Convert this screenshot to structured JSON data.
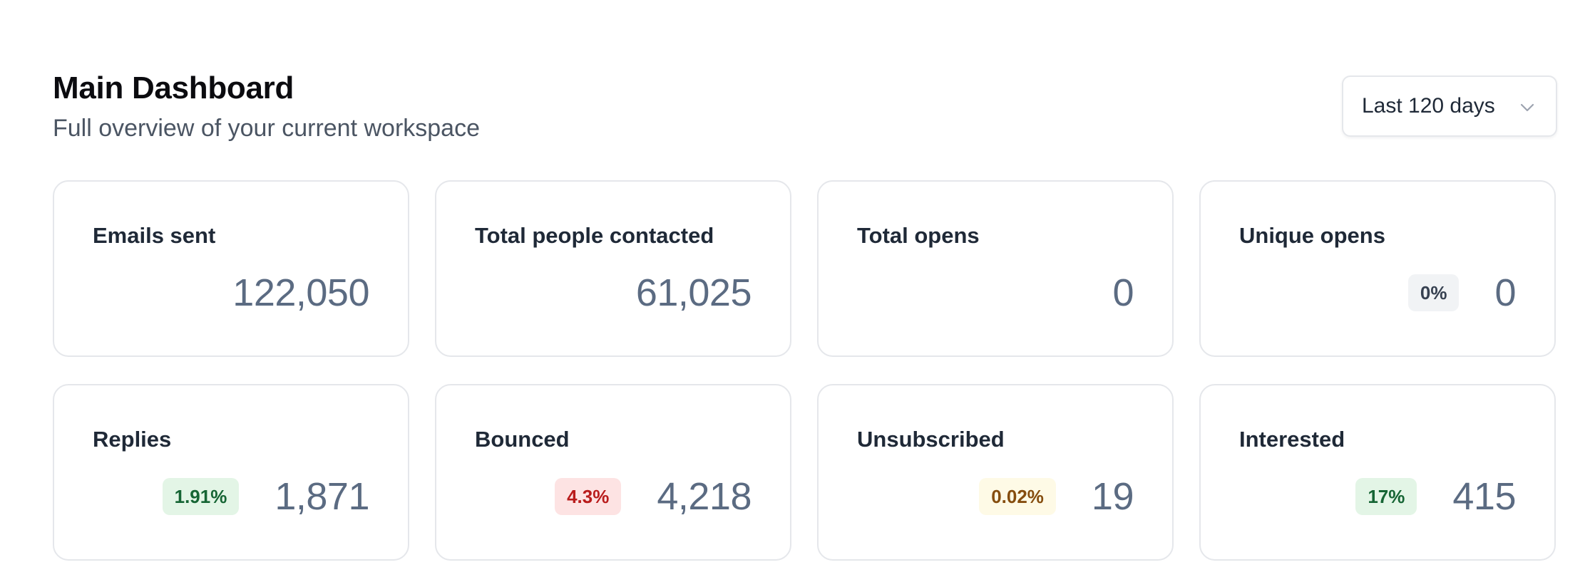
{
  "header": {
    "title": "Main Dashboard",
    "subtitle": "Full overview of your current workspace"
  },
  "date_range": {
    "selected": "Last 120 days",
    "icon": "chevron-down-icon"
  },
  "stats": {
    "emails_sent": {
      "label": "Emails sent",
      "value": "122,050"
    },
    "total_people_contacted": {
      "label": "Total people contacted",
      "value": "61,025"
    },
    "total_opens": {
      "label": "Total opens",
      "value": "0"
    },
    "unique_opens": {
      "label": "Unique opens",
      "value": "0",
      "badge": "0%",
      "badge_color": "#374151",
      "badge_bg": "#f1f3f5"
    },
    "replies": {
      "label": "Replies",
      "value": "1,871",
      "badge": "1.91%",
      "badge_color": "#166534",
      "badge_bg": "#e3f5e6"
    },
    "bounced": {
      "label": "Bounced",
      "value": "4,218",
      "badge": "4.3%",
      "badge_color": "#b91c1c",
      "badge_bg": "#fde3e3"
    },
    "unsubscribed": {
      "label": "Unsubscribed",
      "value": "19",
      "badge": "0.02%",
      "badge_color": "#854d0e",
      "badge_bg": "#fefae6"
    },
    "interested": {
      "label": "Interested",
      "value": "415",
      "badge": "17%",
      "badge_color": "#166534",
      "badge_bg": "#e3f5e6"
    }
  }
}
